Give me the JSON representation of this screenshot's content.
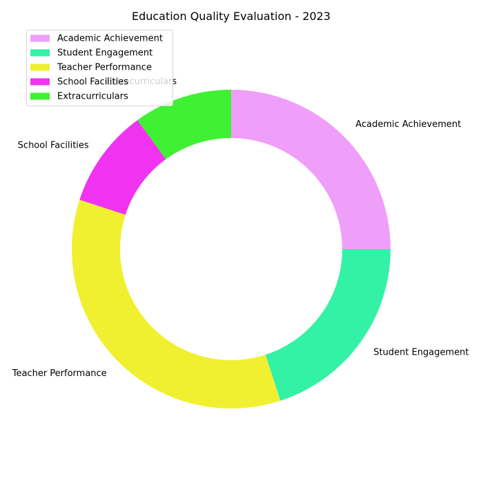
{
  "chart_data": {
    "type": "pie",
    "style": "donut",
    "title": "Education Quality Evaluation - 2023",
    "categories": [
      "Academic Achievement",
      "Student Engagement",
      "Teacher Performance",
      "School Facilities",
      "Extracurriculars"
    ],
    "values": [
      25,
      20,
      35,
      10,
      10
    ],
    "colors": [
      "#ef9ef9",
      "#33f1a5",
      "#f0f030",
      "#f033f0",
      "#40f033"
    ],
    "start_angle_deg": 90,
    "direction": "clockwise",
    "legend_position": "top-left",
    "grid": false
  }
}
